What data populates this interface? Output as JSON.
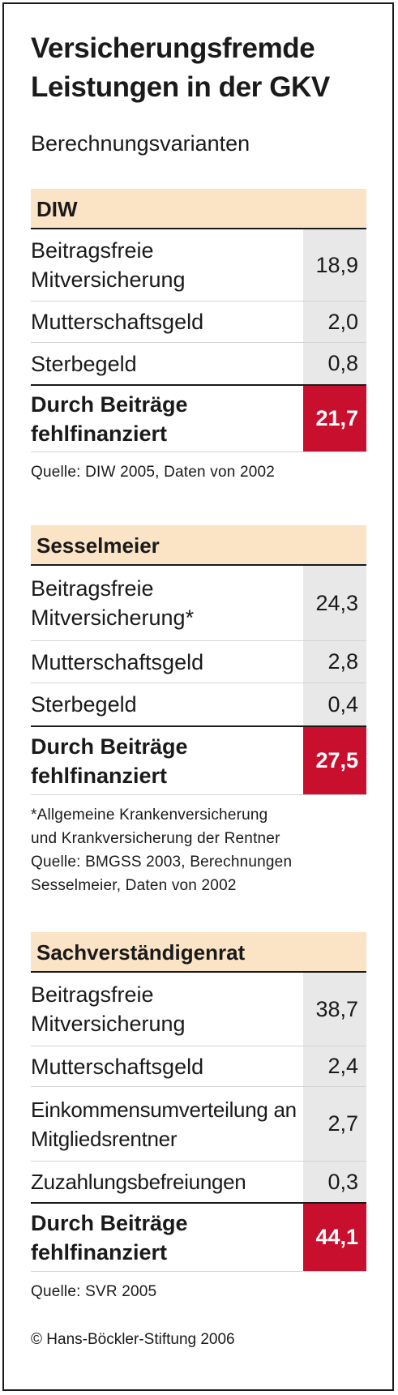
{
  "title": "Versicherungsfremde Leistungen in der GKV",
  "subtitle": "Berechnungsvarianten",
  "chart_data": {
    "type": "table",
    "sections": [
      {
        "name": "DIW",
        "rows": [
          {
            "label": "Beitragsfreie Mitversicherung",
            "value": "18,9"
          },
          {
            "label": "Mutterschaftsgeld",
            "value": "2,0"
          },
          {
            "label": "Sterbegeld",
            "value": "0,8"
          }
        ],
        "total": {
          "label": "Durch Beiträge fehlfinanziert",
          "value": "21,7"
        },
        "note_lines": [
          "Quelle: DIW 2005, Daten von 2002"
        ]
      },
      {
        "name": "Sesselmeier",
        "rows": [
          {
            "label": "Beitragsfreie Mitversicherung*",
            "value": "24,3"
          },
          {
            "label": "Mutterschaftsgeld",
            "value": "2,8"
          },
          {
            "label": "Sterbegeld",
            "value": "0,4"
          }
        ],
        "total": {
          "label": "Durch Beiträge fehlfinanziert",
          "value": "27,5"
        },
        "note_lines": [
          "*Allgemeine Krankenversicherung",
          "und Krankversicherung der Rentner",
          "Quelle: BMGSS 2003, Berechnungen",
          "Sesselmeier, Daten von 2002"
        ]
      },
      {
        "name": "Sachverständigenrat",
        "rows": [
          {
            "label": "Beitragsfreie Mitversicherung",
            "value": "38,7"
          },
          {
            "label": "Mutterschaftsgeld",
            "value": "2,4"
          },
          {
            "label": "Einkommensumverteilung an Mitgliedsrentner",
            "value": "2,7"
          },
          {
            "label": "Zuzahlungsbefreiungen",
            "value": "0,3"
          }
        ],
        "total": {
          "label": "Durch Beiträge fehlfinanziert",
          "value": "44,1"
        },
        "note_lines": [
          "Quelle: SVR 2005"
        ]
      }
    ]
  },
  "copyright": "© Hans-Böckler-Stiftung 2006",
  "colors": {
    "header_bg": "#fbe3c6",
    "value_bg": "#e8e8e8",
    "total_bg": "#c8102e"
  }
}
